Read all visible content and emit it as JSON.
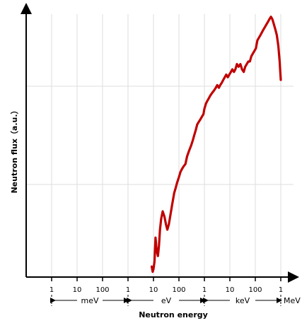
{
  "chart_data": {
    "type": "line",
    "title": "",
    "xlabel": "Neutron energy",
    "ylabel": "Neutron flux（a.u.）",
    "x_scale": "log",
    "x_unit": "eV",
    "xlim": [
      0.0001,
      1500000
    ],
    "ylim": [
      0,
      100
    ],
    "grid": true,
    "colors": {
      "line": "#c00000",
      "axis": "#000000",
      "grid": "#dddddd"
    },
    "x_ticks": [
      {
        "value": 0.001,
        "label": "1"
      },
      {
        "value": 0.01,
        "label": "10"
      },
      {
        "value": 0.1,
        "label": "100"
      },
      {
        "value": 1,
        "label": "1"
      },
      {
        "value": 10,
        "label": "10"
      },
      {
        "value": 100,
        "label": "100"
      },
      {
        "value": 1000,
        "label": "1"
      },
      {
        "value": 10000,
        "label": "10"
      },
      {
        "value": 100000,
        "label": "100"
      },
      {
        "value": 1000000,
        "label": "1"
      }
    ],
    "unit_bands": [
      {
        "label": "meV",
        "from": 0.001,
        "to": 1
      },
      {
        "label": "eV",
        "from": 1,
        "to": 1000
      },
      {
        "label": "keV",
        "from": 1000,
        "to": 1000000
      },
      {
        "label": "MeV",
        "from": 1000000,
        "to": null
      }
    ],
    "series": [
      {
        "x": [
          8.5,
          9.3,
          10,
          11,
          12,
          13.3,
          15,
          16.5,
          18,
          20,
          23,
          27,
          31,
          35,
          40,
          47,
          55,
          65,
          75,
          85,
          100,
          115,
          130,
          150,
          180,
          210,
          250,
          300,
          350,
          400,
          460,
          520,
          600,
          700,
          800,
          920,
          1000,
          1150,
          1300,
          1500,
          1700,
          2000,
          2400,
          2800,
          3200,
          3700,
          4200,
          4900,
          5500,
          6300,
          7200,
          8300,
          9500,
          11000,
          12500,
          14500,
          16500,
          19000,
          22000,
          26000,
          30000,
          35000,
          40000,
          46000,
          53000,
          61000,
          70000,
          80000,
          92000,
          105000,
          120000,
          138000,
          158000,
          180000,
          205000,
          235000,
          270000,
          310000,
          355000,
          410000,
          470000,
          540000,
          620000,
          700000,
          800000,
          900000,
          1000000
        ],
        "y": [
          4,
          2,
          3,
          6,
          15,
          10,
          8,
          12,
          18,
          22,
          25,
          23,
          20,
          18,
          20,
          24,
          28,
          32,
          34,
          36,
          38,
          40,
          41,
          42,
          43,
          46,
          48,
          50,
          52,
          54,
          56,
          58,
          59,
          60,
          61,
          62,
          64,
          66,
          67,
          68,
          69,
          70,
          71,
          72,
          73,
          72,
          73,
          74,
          75,
          76,
          77,
          76,
          77,
          78,
          79,
          78,
          79,
          81,
          80,
          81,
          79,
          78,
          80,
          81,
          82,
          82,
          84,
          85,
          86,
          87,
          90,
          91,
          92,
          93,
          94,
          95,
          96,
          97,
          98,
          99,
          98,
          96,
          94,
          92,
          88,
          82,
          75
        ]
      }
    ]
  }
}
